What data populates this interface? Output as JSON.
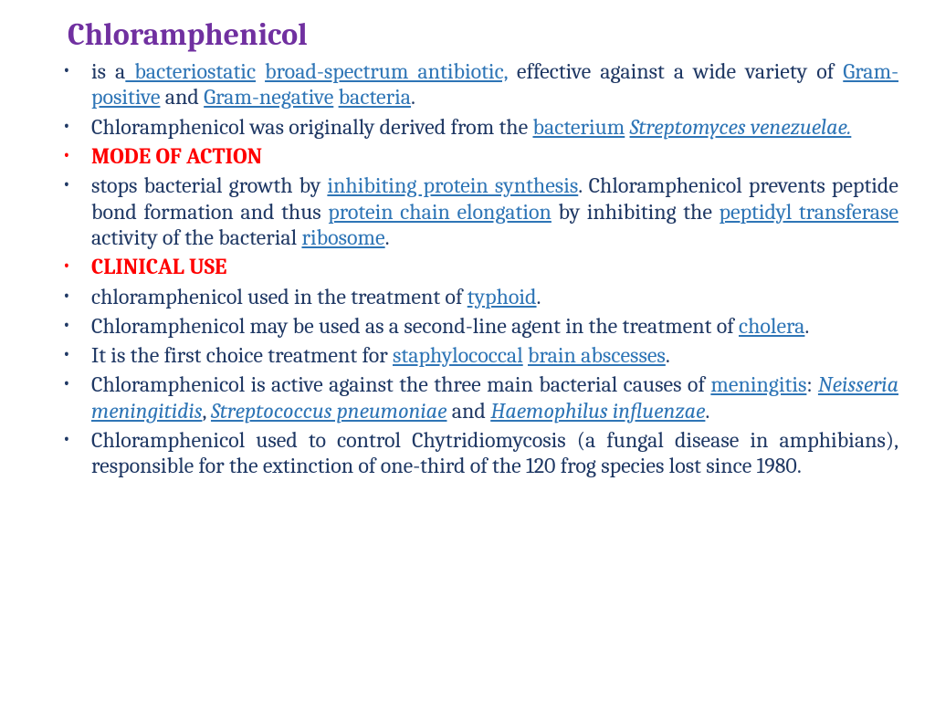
{
  "title": "Chloramphenicol",
  "colors": {
    "title": "#7030a0",
    "text": "#1f3864",
    "heading": "#ff0000",
    "link": "#2e75b6",
    "background": "#ffffff"
  },
  "bullets": [
    {
      "segments": [
        {
          "t": "is a"
        },
        {
          "t": " bacteriostatic",
          "link": true
        },
        {
          "t": " "
        },
        {
          "t": "broad-spectrum antibiotic,",
          "link": true
        },
        {
          "t": " effective against a wide variety of "
        },
        {
          "t": "Gram-positive",
          "link": true
        },
        {
          "t": " and "
        },
        {
          "t": "Gram-negative",
          "link": true
        },
        {
          "t": " "
        },
        {
          "t": "bacteria",
          "link": true
        },
        {
          "DOT": true
        }
      ]
    },
    {
      "segments": [
        {
          "t": "Chloramphenicol was originally derived from the "
        },
        {
          "t": "bacterium",
          "link": true
        },
        {
          "t": " "
        },
        {
          "t": "Streptomyces venezuelae.",
          "link": true,
          "italic": true
        }
      ]
    },
    {
      "heading": true,
      "segments": [
        {
          "t": "MODE OF ACTION",
          "headingText": true
        }
      ]
    },
    {
      "segments": [
        {
          "t": "stops bacterial growth by "
        },
        {
          "t": "inhibiting protein synthesis",
          "link": true
        },
        {
          "t": ". Chloramphenicol prevents peptide bond formation and thus "
        },
        {
          "t": "protein chain elongation",
          "link": true
        },
        {
          "t": " by inhibiting the "
        },
        {
          "t": "peptidyl transferase",
          "link": true
        },
        {
          "t": " activity of the bacterial "
        },
        {
          "t": "ribosome",
          "link": true
        },
        {
          "DOT": true
        }
      ]
    },
    {
      "heading": true,
      "segments": [
        {
          "t": "CLINICAL USE",
          "headingText": true
        }
      ]
    },
    {
      "segments": [
        {
          "t": "chloramphenicol used in the treatment of "
        },
        {
          "t": "typhoid",
          "link": true
        },
        {
          "DOT": true
        }
      ]
    },
    {
      "segments": [
        {
          "t": "Chloramphenicol may be used as a second-line agent in the treatment of "
        },
        {
          "t": "cholera",
          "link": true
        },
        {
          "DOT": true
        }
      ]
    },
    {
      "segments": [
        {
          "t": "It is the first choice treatment for "
        },
        {
          "t": "staphylococcal",
          "link": true
        },
        {
          "t": " "
        },
        {
          "t": "brain abscesses",
          "link": true
        },
        {
          "DOT": true
        }
      ]
    },
    {
      "segments": [
        {
          "t": "Chloramphenicol is active against the three main bacterial causes of "
        },
        {
          "t": "meningitis",
          "link": true
        },
        {
          "t": ": "
        },
        {
          "t": "Neisseria meningitidis",
          "link": true,
          "italic": true
        },
        {
          "t": ", "
        },
        {
          "t": "Streptococcus pneumoniae",
          "link": true,
          "italic": true
        },
        {
          "t": " and "
        },
        {
          "t": "Haemophilus influenzae",
          "link": true,
          "italic": true
        },
        {
          "DOT": true
        }
      ]
    },
    {
      "segments": [
        {
          "t": "Chloramphenicol used to control Chytridiomycosis (a fungal disease in amphibians), responsible for the extinction of one-third of the 120 frog species lost since 1980."
        }
      ]
    }
  ]
}
